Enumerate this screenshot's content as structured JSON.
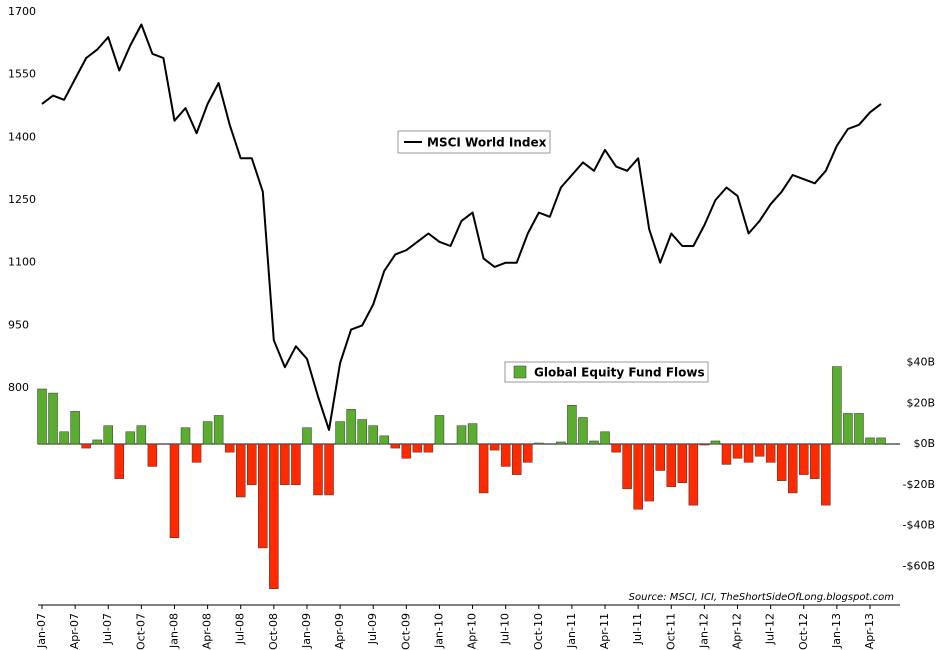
{
  "chart_data": {
    "type": "bar",
    "categories": [
      "Jan-07",
      null,
      null,
      "Apr-07",
      null,
      null,
      "Jul-07",
      null,
      null,
      "Oct-07",
      null,
      null,
      "Jan-08",
      null,
      null,
      "Apr-08",
      null,
      null,
      "Jul-08",
      null,
      null,
      "Oct-08",
      null,
      null,
      "Jan-09",
      null,
      null,
      "Apr-09",
      null,
      null,
      "Jul-09",
      null,
      null,
      "Oct-09",
      null,
      null,
      "Jan-10",
      null,
      null,
      "Apr-10",
      null,
      null,
      "Jul-10",
      null,
      null,
      "Oct-10",
      null,
      null,
      "Jan-11",
      null,
      null,
      "Apr-11",
      null,
      null,
      "Jul-11",
      null,
      null,
      "Oct-11",
      null,
      null,
      "Jan-12",
      null,
      null,
      "Apr-12",
      null,
      null,
      "Jul-12",
      null,
      null,
      "Oct-12",
      null,
      null,
      "Jan-13",
      null,
      null,
      "Apr-13",
      null
    ],
    "series": [
      {
        "name": "Global Equity Fund Flows",
        "type": "bar",
        "axis": "y2",
        "color": "#5aad2f",
        "negative_color": "#ff2a00",
        "values": [
          27,
          25,
          6,
          16,
          -2,
          2,
          9,
          -17,
          6,
          9,
          -11,
          0,
          -46,
          8,
          -9,
          11,
          14,
          -4,
          -26,
          -20,
          -51,
          -71,
          -20,
          -20,
          8,
          -25,
          -25,
          11,
          17,
          12,
          9,
          4,
          -2,
          -7,
          -4,
          -4,
          14,
          0,
          9,
          10,
          -24,
          -3,
          -11,
          -15,
          -9,
          0.5,
          0,
          1,
          19,
          13,
          1.5,
          6,
          -4,
          -22,
          -32,
          -28,
          -13,
          -21,
          -19,
          -30,
          -0.5,
          1.5,
          -10,
          -7,
          -9,
          -6,
          -9,
          -18,
          -24,
          -15,
          -17,
          -30,
          38,
          15,
          15,
          3,
          3
        ]
      },
      {
        "name": "MSCI World Index",
        "type": "line",
        "color": "#000000",
        "values": [
          1480,
          1500,
          1490,
          1540,
          1590,
          1610,
          1640,
          1560,
          1620,
          1670,
          1600,
          1590,
          1440,
          1470,
          1410,
          1480,
          1530,
          1430,
          1350,
          1350,
          1270,
          915,
          850,
          900,
          870,
          780,
          700,
          860,
          940,
          950,
          1000,
          1080,
          1120,
          1130,
          1150,
          1170,
          1150,
          1140,
          1200,
          1220,
          1110,
          1090,
          1100,
          1100,
          1170,
          1220,
          1210,
          1280,
          1310,
          1340,
          1320,
          1370,
          1330,
          1320,
          1350,
          1180,
          1100,
          1170,
          1140,
          1140,
          1190,
          1250,
          1280,
          1260,
          1170,
          1200,
          1240,
          1270,
          1310,
          1300,
          1290,
          1320,
          1380,
          1420,
          1430,
          1460,
          1480
        ]
      }
    ],
    "ylim": [
      281,
      1700
    ],
    "yticks": [
      800,
      950,
      1100,
      1250,
      1400,
      1550,
      1700
    ],
    "y2lim": [
      -79,
      212
    ],
    "y2ticks": [
      {
        "value": -60,
        "label": "-$60B"
      },
      {
        "value": -40,
        "label": "-$40B"
      },
      {
        "value": -20,
        "label": "-$20B"
      },
      {
        "value": 0,
        "label": "$0B"
      },
      {
        "value": 20,
        "label": "$20B"
      },
      {
        "value": 40,
        "label": "$40B"
      }
    ],
    "grid": false,
    "source": "Source: MSCI, ICI, TheShortSideOfLong.blogspot.com"
  }
}
